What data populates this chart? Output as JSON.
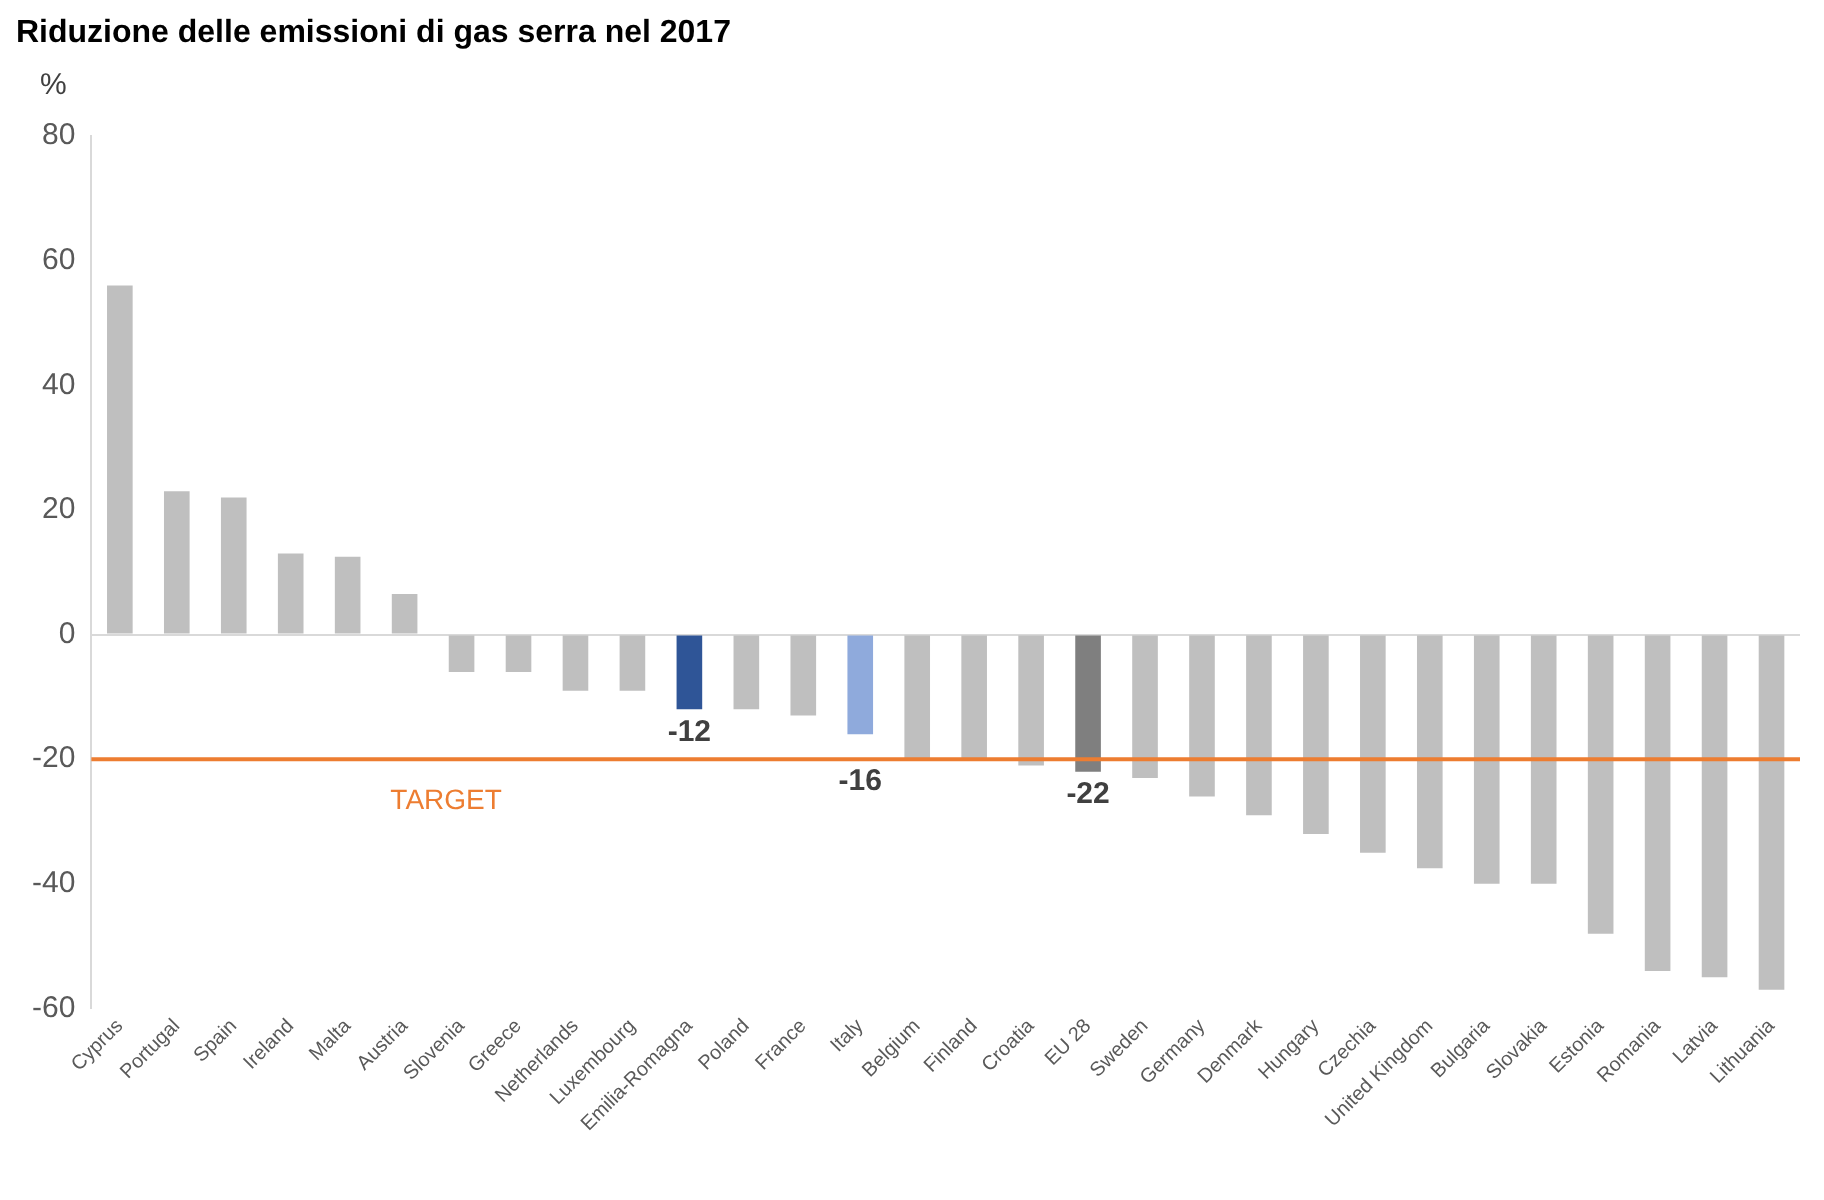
{
  "chart_data": {
    "type": "bar",
    "title": "Riduzione delle emissioni di gas serra nel 2017",
    "ylabel": "%",
    "categories": [
      "Cyprus",
      "Portugal",
      "Spain",
      "Ireland",
      "Malta",
      "Austria",
      "Slovenia",
      "Greece",
      "Netherlands",
      "Luxembourg",
      "Emilia-Romagna",
      "Poland",
      "France",
      "Italy",
      "Belgium",
      "Finland",
      "Croatia",
      "EU 28",
      "Sweden",
      "Germany",
      "Denmark",
      "Hungary",
      "Czechia",
      "United Kingdom",
      "Bulgaria",
      "Slovakia",
      "Estonia",
      "Romania",
      "Latvia",
      "Lithuania"
    ],
    "values": [
      56,
      23,
      22,
      13,
      12.5,
      6.5,
      -6,
      -6,
      -9,
      -9,
      -12,
      -12,
      -13,
      -16,
      -20,
      -20,
      -21,
      -22,
      -23,
      -26,
      -29,
      -32,
      -35,
      -37.5,
      -40,
      -40,
      -48,
      -54,
      -55,
      -57
    ],
    "value_labels": [
      null,
      null,
      null,
      null,
      null,
      null,
      null,
      null,
      null,
      null,
      "-12",
      null,
      null,
      "-16",
      null,
      null,
      null,
      "-22",
      null,
      null,
      null,
      null,
      null,
      null,
      null,
      null,
      null,
      null,
      null,
      null
    ],
    "colors": [
      "#bfbfbf",
      "#bfbfbf",
      "#bfbfbf",
      "#bfbfbf",
      "#bfbfbf",
      "#bfbfbf",
      "#bfbfbf",
      "#bfbfbf",
      "#bfbfbf",
      "#bfbfbf",
      "#2f5597",
      "#bfbfbf",
      "#bfbfbf",
      "#8faadc",
      "#bfbfbf",
      "#bfbfbf",
      "#bfbfbf",
      "#7f7f7f",
      "#bfbfbf",
      "#bfbfbf",
      "#bfbfbf",
      "#bfbfbf",
      "#bfbfbf",
      "#bfbfbf",
      "#bfbfbf",
      "#bfbfbf",
      "#bfbfbf",
      "#bfbfbf",
      "#bfbfbf",
      "#bfbfbf"
    ],
    "ylim": [
      -60,
      80
    ],
    "yticks": [
      -60,
      -40,
      -20,
      0,
      20,
      40,
      60,
      80
    ],
    "ref_lines": [
      {
        "axis": "y",
        "value": -20,
        "label": "TARGET",
        "color": "#ed7d31"
      }
    ],
    "grid": false,
    "legend": false
  }
}
